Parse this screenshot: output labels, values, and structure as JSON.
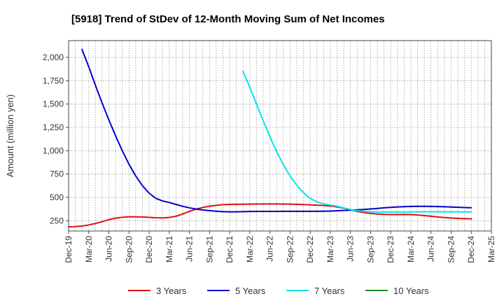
{
  "title": "[5918]  Trend of StDev of 12-Month Moving Sum of Net Incomes",
  "chart_data": {
    "type": "line",
    "title": "[5918]  Trend of StDev of 12-Month Moving Sum of Net Incomes",
    "xlabel": "",
    "ylabel": "Amount (million yen)",
    "ylim": [
      140,
      2180
    ],
    "yticks": [
      250,
      500,
      750,
      1000,
      1250,
      1500,
      1750,
      2000
    ],
    "ytick_labels": [
      "250",
      "500",
      "750",
      "1,000",
      "1,250",
      "1,500",
      "1,750",
      "2,000"
    ],
    "x_start": "2019-12",
    "x_end": "2025-03",
    "xtick_labels": [
      "Dec-19",
      "Mar-20",
      "Jun-20",
      "Sep-20",
      "Dec-20",
      "Mar-21",
      "Jun-21",
      "Sep-21",
      "Dec-21",
      "Mar-22",
      "Jun-22",
      "Sep-22",
      "Dec-22",
      "Mar-23",
      "Jun-23",
      "Sep-23",
      "Dec-23",
      "Mar-24",
      "Jun-24",
      "Sep-24",
      "Dec-24",
      "Mar-25"
    ],
    "grid": true,
    "legend_position": "bottom",
    "series": [
      {
        "name": "3 Years",
        "color": "#dd1111",
        "points": [
          [
            "2019-12",
            185
          ],
          [
            "2020-01",
            187
          ],
          [
            "2020-02",
            193
          ],
          [
            "2020-03",
            205
          ],
          [
            "2020-04",
            220
          ],
          [
            "2020-05",
            240
          ],
          [
            "2020-06",
            262
          ],
          [
            "2020-07",
            278
          ],
          [
            "2020-08",
            287
          ],
          [
            "2020-09",
            292
          ],
          [
            "2020-10",
            292
          ],
          [
            "2020-11",
            290
          ],
          [
            "2020-12",
            286
          ],
          [
            "2021-01",
            282
          ],
          [
            "2021-02",
            280
          ],
          [
            "2021-03",
            285
          ],
          [
            "2021-04",
            298
          ],
          [
            "2021-05",
            322
          ],
          [
            "2021-06",
            350
          ],
          [
            "2021-07",
            375
          ],
          [
            "2021-08",
            392
          ],
          [
            "2021-09",
            405
          ],
          [
            "2021-10",
            415
          ],
          [
            "2021-11",
            422
          ],
          [
            "2021-12",
            425
          ],
          [
            "2022-01",
            426
          ],
          [
            "2022-02",
            427
          ],
          [
            "2022-03",
            428
          ],
          [
            "2022-04",
            429
          ],
          [
            "2022-05",
            430
          ],
          [
            "2022-06",
            430
          ],
          [
            "2022-07",
            430
          ],
          [
            "2022-08",
            429
          ],
          [
            "2022-09",
            428
          ],
          [
            "2022-10",
            426
          ],
          [
            "2022-11",
            423
          ],
          [
            "2022-12",
            420
          ],
          [
            "2023-01",
            417
          ],
          [
            "2023-02",
            413
          ],
          [
            "2023-03",
            408
          ],
          [
            "2023-04",
            398
          ],
          [
            "2023-05",
            385
          ],
          [
            "2023-06",
            368
          ],
          [
            "2023-07",
            350
          ],
          [
            "2023-08",
            338
          ],
          [
            "2023-09",
            328
          ],
          [
            "2023-10",
            322
          ],
          [
            "2023-11",
            318
          ],
          [
            "2023-12",
            316
          ],
          [
            "2024-01",
            316
          ],
          [
            "2024-02",
            317
          ],
          [
            "2024-03",
            316
          ],
          [
            "2024-04",
            312
          ],
          [
            "2024-05",
            305
          ],
          [
            "2024-06",
            298
          ],
          [
            "2024-07",
            290
          ],
          [
            "2024-08",
            284
          ],
          [
            "2024-09",
            279
          ],
          [
            "2024-10",
            275
          ],
          [
            "2024-11",
            272
          ],
          [
            "2024-12",
            270
          ]
        ]
      },
      {
        "name": "5 Years",
        "color": "#0000cc",
        "points": [
          [
            "2020-02",
            2085
          ],
          [
            "2020-03",
            1900
          ],
          [
            "2020-04",
            1700
          ],
          [
            "2020-05",
            1510
          ],
          [
            "2020-06",
            1330
          ],
          [
            "2020-07",
            1160
          ],
          [
            "2020-08",
            1000
          ],
          [
            "2020-09",
            855
          ],
          [
            "2020-10",
            730
          ],
          [
            "2020-11",
            625
          ],
          [
            "2020-12",
            545
          ],
          [
            "2021-01",
            490
          ],
          [
            "2021-02",
            462
          ],
          [
            "2021-03",
            445
          ],
          [
            "2021-04",
            425
          ],
          [
            "2021-05",
            405
          ],
          [
            "2021-06",
            388
          ],
          [
            "2021-07",
            375
          ],
          [
            "2021-08",
            365
          ],
          [
            "2021-09",
            358
          ],
          [
            "2021-10",
            352
          ],
          [
            "2021-11",
            347
          ],
          [
            "2021-12",
            345
          ],
          [
            "2022-01",
            345
          ],
          [
            "2022-02",
            347
          ],
          [
            "2022-03",
            349
          ],
          [
            "2022-04",
            350
          ],
          [
            "2022-05",
            350
          ],
          [
            "2022-06",
            350
          ],
          [
            "2022-07",
            350
          ],
          [
            "2022-08",
            351
          ],
          [
            "2022-09",
            351
          ],
          [
            "2022-10",
            351
          ],
          [
            "2022-11",
            351
          ],
          [
            "2022-12",
            351
          ],
          [
            "2023-01",
            351
          ],
          [
            "2023-02",
            352
          ],
          [
            "2023-03",
            354
          ],
          [
            "2023-04",
            357
          ],
          [
            "2023-05",
            360
          ],
          [
            "2023-06",
            363
          ],
          [
            "2023-07",
            367
          ],
          [
            "2023-08",
            371
          ],
          [
            "2023-09",
            376
          ],
          [
            "2023-10",
            382
          ],
          [
            "2023-11",
            388
          ],
          [
            "2023-12",
            393
          ],
          [
            "2024-01",
            398
          ],
          [
            "2024-02",
            401
          ],
          [
            "2024-03",
            403
          ],
          [
            "2024-04",
            404
          ],
          [
            "2024-05",
            404
          ],
          [
            "2024-06",
            403
          ],
          [
            "2024-07",
            402
          ],
          [
            "2024-08",
            400
          ],
          [
            "2024-09",
            397
          ],
          [
            "2024-10",
            394
          ],
          [
            "2024-11",
            391
          ],
          [
            "2024-12",
            389
          ]
        ]
      },
      {
        "name": "7 Years",
        "color": "#00e5ee",
        "points": [
          [
            "2022-02",
            1850
          ],
          [
            "2022-03",
            1680
          ],
          [
            "2022-04",
            1500
          ],
          [
            "2022-05",
            1320
          ],
          [
            "2022-06",
            1150
          ],
          [
            "2022-07",
            990
          ],
          [
            "2022-08",
            850
          ],
          [
            "2022-09",
            730
          ],
          [
            "2022-10",
            630
          ],
          [
            "2022-11",
            550
          ],
          [
            "2022-12",
            490
          ],
          [
            "2023-01",
            452
          ],
          [
            "2023-02",
            430
          ],
          [
            "2023-03",
            418
          ],
          [
            "2023-04",
            405
          ],
          [
            "2023-05",
            388
          ],
          [
            "2023-06",
            370
          ],
          [
            "2023-07",
            358
          ],
          [
            "2023-08",
            350
          ],
          [
            "2023-09",
            346
          ],
          [
            "2023-10",
            344
          ],
          [
            "2023-11",
            343
          ],
          [
            "2023-12",
            343
          ],
          [
            "2024-01",
            343
          ],
          [
            "2024-02",
            343
          ],
          [
            "2024-03",
            344
          ],
          [
            "2024-04",
            345
          ],
          [
            "2024-05",
            346
          ],
          [
            "2024-06",
            346
          ],
          [
            "2024-07",
            346
          ],
          [
            "2024-08",
            346
          ],
          [
            "2024-09",
            345
          ],
          [
            "2024-10",
            345
          ],
          [
            "2024-11",
            344
          ],
          [
            "2024-12",
            344
          ]
        ]
      },
      {
        "name": "10 Years",
        "color": "#228b22",
        "points": []
      }
    ]
  }
}
